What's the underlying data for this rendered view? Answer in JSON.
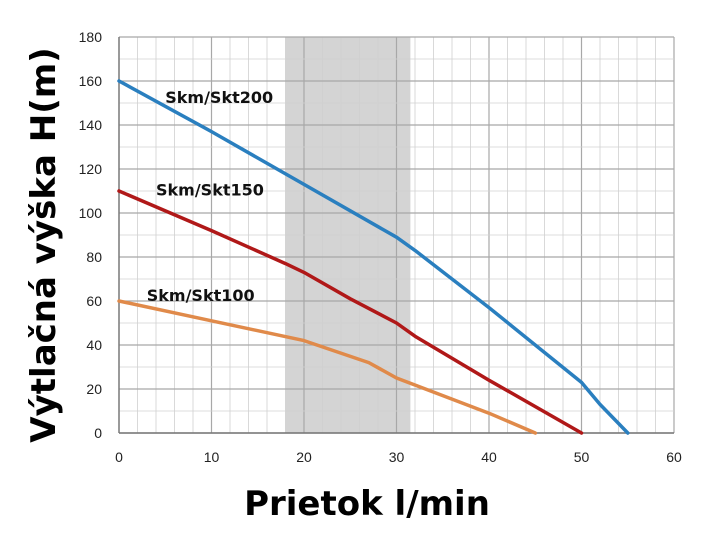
{
  "chart_data": {
    "type": "line",
    "xlabel": "Prietok l/min",
    "ylabel": "Výtlačná výška H(m)",
    "xlim": [
      0,
      60
    ],
    "ylim": [
      0,
      180
    ],
    "x_ticks": [
      "0",
      "10",
      "20",
      "30",
      "40",
      "50",
      "60"
    ],
    "y_ticks": [
      "0",
      "20",
      "40",
      "60",
      "80",
      "100",
      "120",
      "140",
      "160",
      "180"
    ],
    "grid": true,
    "highlight_band": {
      "x_from": 18,
      "x_to": 31.5,
      "color": "#d4d4d4"
    },
    "series": [
      {
        "name": "Skm/Skt200",
        "color": "#2a7fbf",
        "points": [
          [
            0,
            160
          ],
          [
            10,
            137
          ],
          [
            20,
            113
          ],
          [
            30,
            89
          ],
          [
            32,
            83
          ],
          [
            40,
            57
          ],
          [
            50,
            23
          ],
          [
            52,
            13
          ],
          [
            55,
            0
          ]
        ]
      },
      {
        "name": "Skm/Skt150",
        "color": "#b01818",
        "points": [
          [
            0,
            110
          ],
          [
            10,
            92
          ],
          [
            18,
            77
          ],
          [
            20,
            73
          ],
          [
            25,
            61
          ],
          [
            30,
            50
          ],
          [
            32,
            44
          ],
          [
            40,
            24
          ],
          [
            50,
            0
          ]
        ]
      },
      {
        "name": "Skm/Skt100",
        "color": "#e08a4a",
        "points": [
          [
            0,
            60
          ],
          [
            10,
            51
          ],
          [
            20,
            42
          ],
          [
            27,
            32
          ],
          [
            30,
            25
          ],
          [
            35,
            17
          ],
          [
            40,
            9
          ],
          [
            45,
            0
          ]
        ]
      }
    ]
  }
}
